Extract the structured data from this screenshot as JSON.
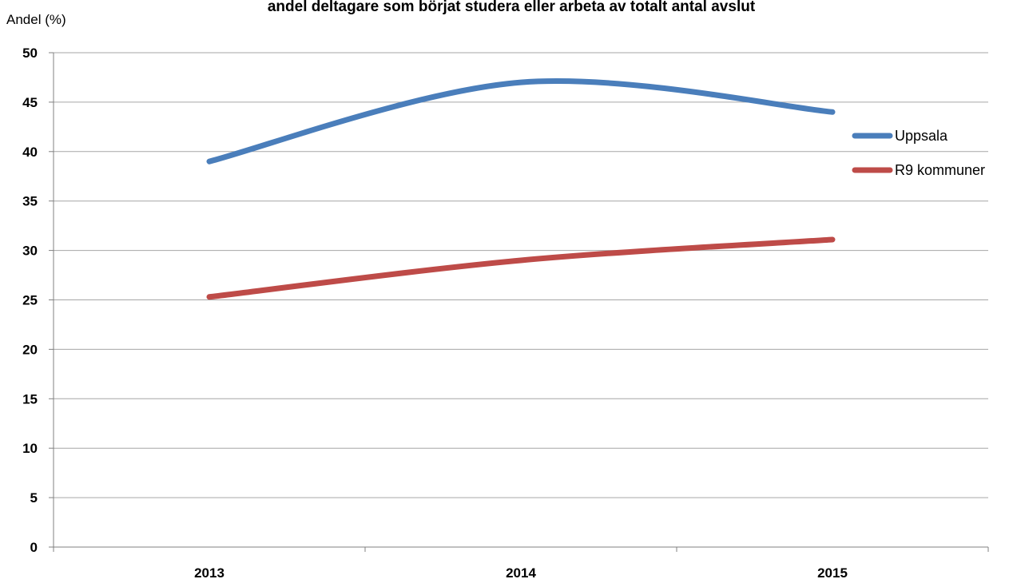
{
  "chart_data": {
    "type": "line",
    "title": "andel deltagare som börjat studera eller arbeta av totalt antal avslut",
    "ylabel": "Andel (%)",
    "xlabel": "",
    "categories": [
      "2013",
      "2014",
      "2015"
    ],
    "ylim": [
      0,
      50
    ],
    "yticks": [
      0,
      5,
      10,
      15,
      20,
      25,
      30,
      35,
      40,
      45,
      50
    ],
    "grid": true,
    "smooth": true,
    "legend_position": "right",
    "series": [
      {
        "name": "Uppsala",
        "values": [
          39,
          47,
          44
        ],
        "color": "#4a7ebb"
      },
      {
        "name": "R9 kommuner",
        "values": [
          25.3,
          29,
          31.1
        ],
        "color": "#be4b48"
      }
    ]
  }
}
